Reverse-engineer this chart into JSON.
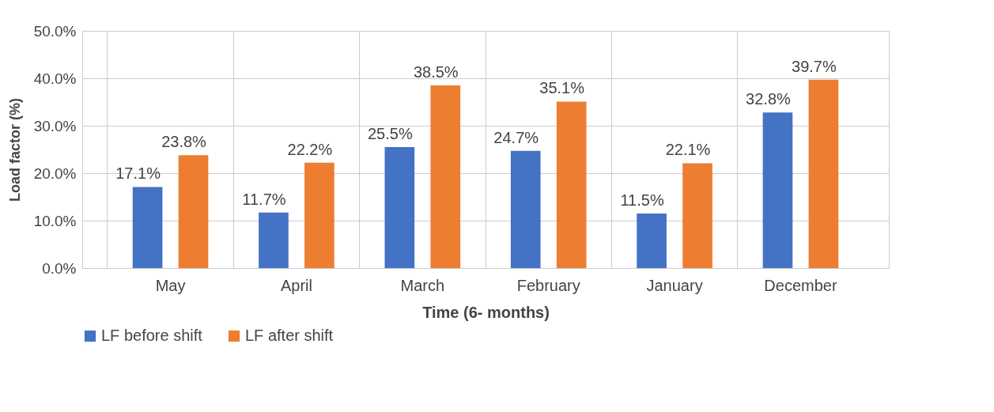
{
  "chart_data": {
    "type": "bar",
    "xlabel": "Time (6- months)",
    "ylabel": "Load factor (%)",
    "categories": [
      "May",
      "April",
      "March",
      "February",
      "January",
      "December"
    ],
    "series": [
      {
        "name": "LF before shift",
        "color": "#4472c4",
        "values": [
          17.1,
          11.7,
          25.5,
          24.7,
          11.5,
          32.8
        ],
        "value_labels": [
          "17.1%",
          "11.7%",
          "25.5%",
          "24.7%",
          "11.5%",
          "32.8%"
        ]
      },
      {
        "name": "LF after shift",
        "color": "#ed7d31",
        "values": [
          23.8,
          22.2,
          38.5,
          35.1,
          22.1,
          39.7
        ],
        "value_labels": [
          "23.8%",
          "22.2%",
          "38.5%",
          "35.1%",
          "22.1%",
          "39.7%"
        ]
      }
    ],
    "ylim": [
      0,
      50
    ],
    "yticks": [
      {
        "value": 0,
        "label": "0.0%"
      },
      {
        "value": 10,
        "label": "10.0%"
      },
      {
        "value": 20,
        "label": "20.0%"
      },
      {
        "value": 30,
        "label": "30.0%"
      },
      {
        "value": 40,
        "label": "40.0%"
      },
      {
        "value": 50,
        "label": "50.0%"
      }
    ],
    "grid": true,
    "legend": "bottom"
  }
}
